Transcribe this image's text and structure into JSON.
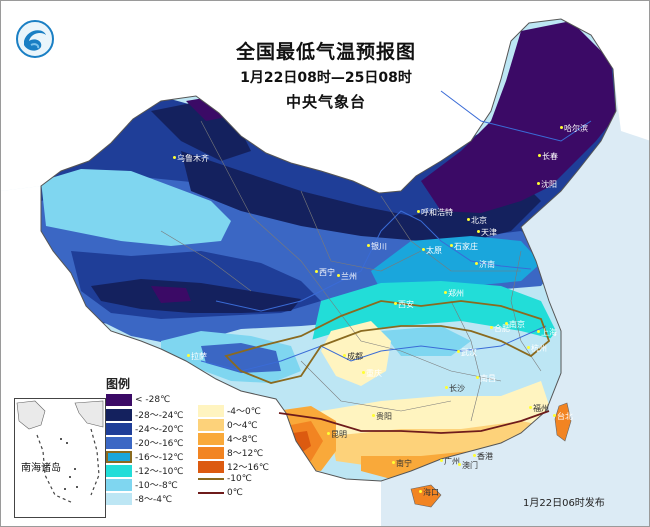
{
  "header": {
    "title": "全国最低气温预报图",
    "period": "1月22日08时—25日08时",
    "issuer": "中央气象台"
  },
  "legend": {
    "title": "图例",
    "items": [
      {
        "label": "< -28℃",
        "color": "#3b0a66"
      },
      {
        "label": "-28～-24℃",
        "color": "#14215e"
      },
      {
        "label": "-24～-20℃",
        "color": "#1f3e98"
      },
      {
        "label": "-20～-16℃",
        "color": "#3b67c4"
      },
      {
        "label": "-16～-12℃",
        "color": "#1aa6dc"
      },
      {
        "label": "-12～-10℃",
        "color": "#22ddd8"
      },
      {
        "label": "-10～-8℃",
        "color": "#7fd6f0"
      },
      {
        "label": "-8～-4℃",
        "color": "#bde6f4"
      },
      {
        "label": "-4～0℃",
        "color": "#fff4c0"
      },
      {
        "label": "0～4℃",
        "color": "#fdd27a"
      },
      {
        "label": "4～8℃",
        "color": "#f9a93a"
      },
      {
        "label": "8～12℃",
        "color": "#f28422"
      },
      {
        "label": "12～16℃",
        "color": "#dc5a10"
      },
      {
        "label": "-10℃",
        "color": "#8a6a1f"
      },
      {
        "label": "0℃",
        "color": "#6e1b1b"
      }
    ]
  },
  "inset": {
    "label": "南海诸岛"
  },
  "release": "1月22日06时发布",
  "cities": [
    {
      "name": "乌鲁木齐",
      "light": true
    },
    {
      "name": "哈尔滨",
      "light": true
    },
    {
      "name": "长春",
      "light": true
    },
    {
      "name": "沈阳",
      "light": true
    },
    {
      "name": "呼和浩特",
      "light": true
    },
    {
      "name": "北京",
      "light": true
    },
    {
      "name": "天津",
      "light": true
    },
    {
      "name": "银川",
      "light": true
    },
    {
      "name": "太原",
      "light": true
    },
    {
      "name": "石家庄",
      "light": true
    },
    {
      "name": "济南",
      "light": true
    },
    {
      "name": "西宁",
      "light": true
    },
    {
      "name": "兰州",
      "light": true
    },
    {
      "name": "郑州",
      "light": true
    },
    {
      "name": "西安",
      "light": true
    },
    {
      "name": "合肥",
      "light": true
    },
    {
      "name": "南京",
      "light": true
    },
    {
      "name": "上海",
      "light": true
    },
    {
      "name": "杭州",
      "light": true
    },
    {
      "name": "武汉",
      "light": true
    },
    {
      "name": "成都",
      "light": false
    },
    {
      "name": "拉萨",
      "light": true
    },
    {
      "name": "重庆",
      "light": true
    },
    {
      "name": "长沙",
      "light": false
    },
    {
      "name": "南昌",
      "light": true
    },
    {
      "name": "贵阳",
      "light": false
    },
    {
      "name": "福州",
      "light": false
    },
    {
      "name": "台北",
      "light": true
    },
    {
      "name": "昆明",
      "light": false
    },
    {
      "name": "南宁",
      "light": false
    },
    {
      "name": "广州",
      "light": false
    },
    {
      "name": "香港",
      "light": false
    },
    {
      "name": "澳门",
      "light": false
    },
    {
      "name": "海口",
      "light": false
    }
  ]
}
